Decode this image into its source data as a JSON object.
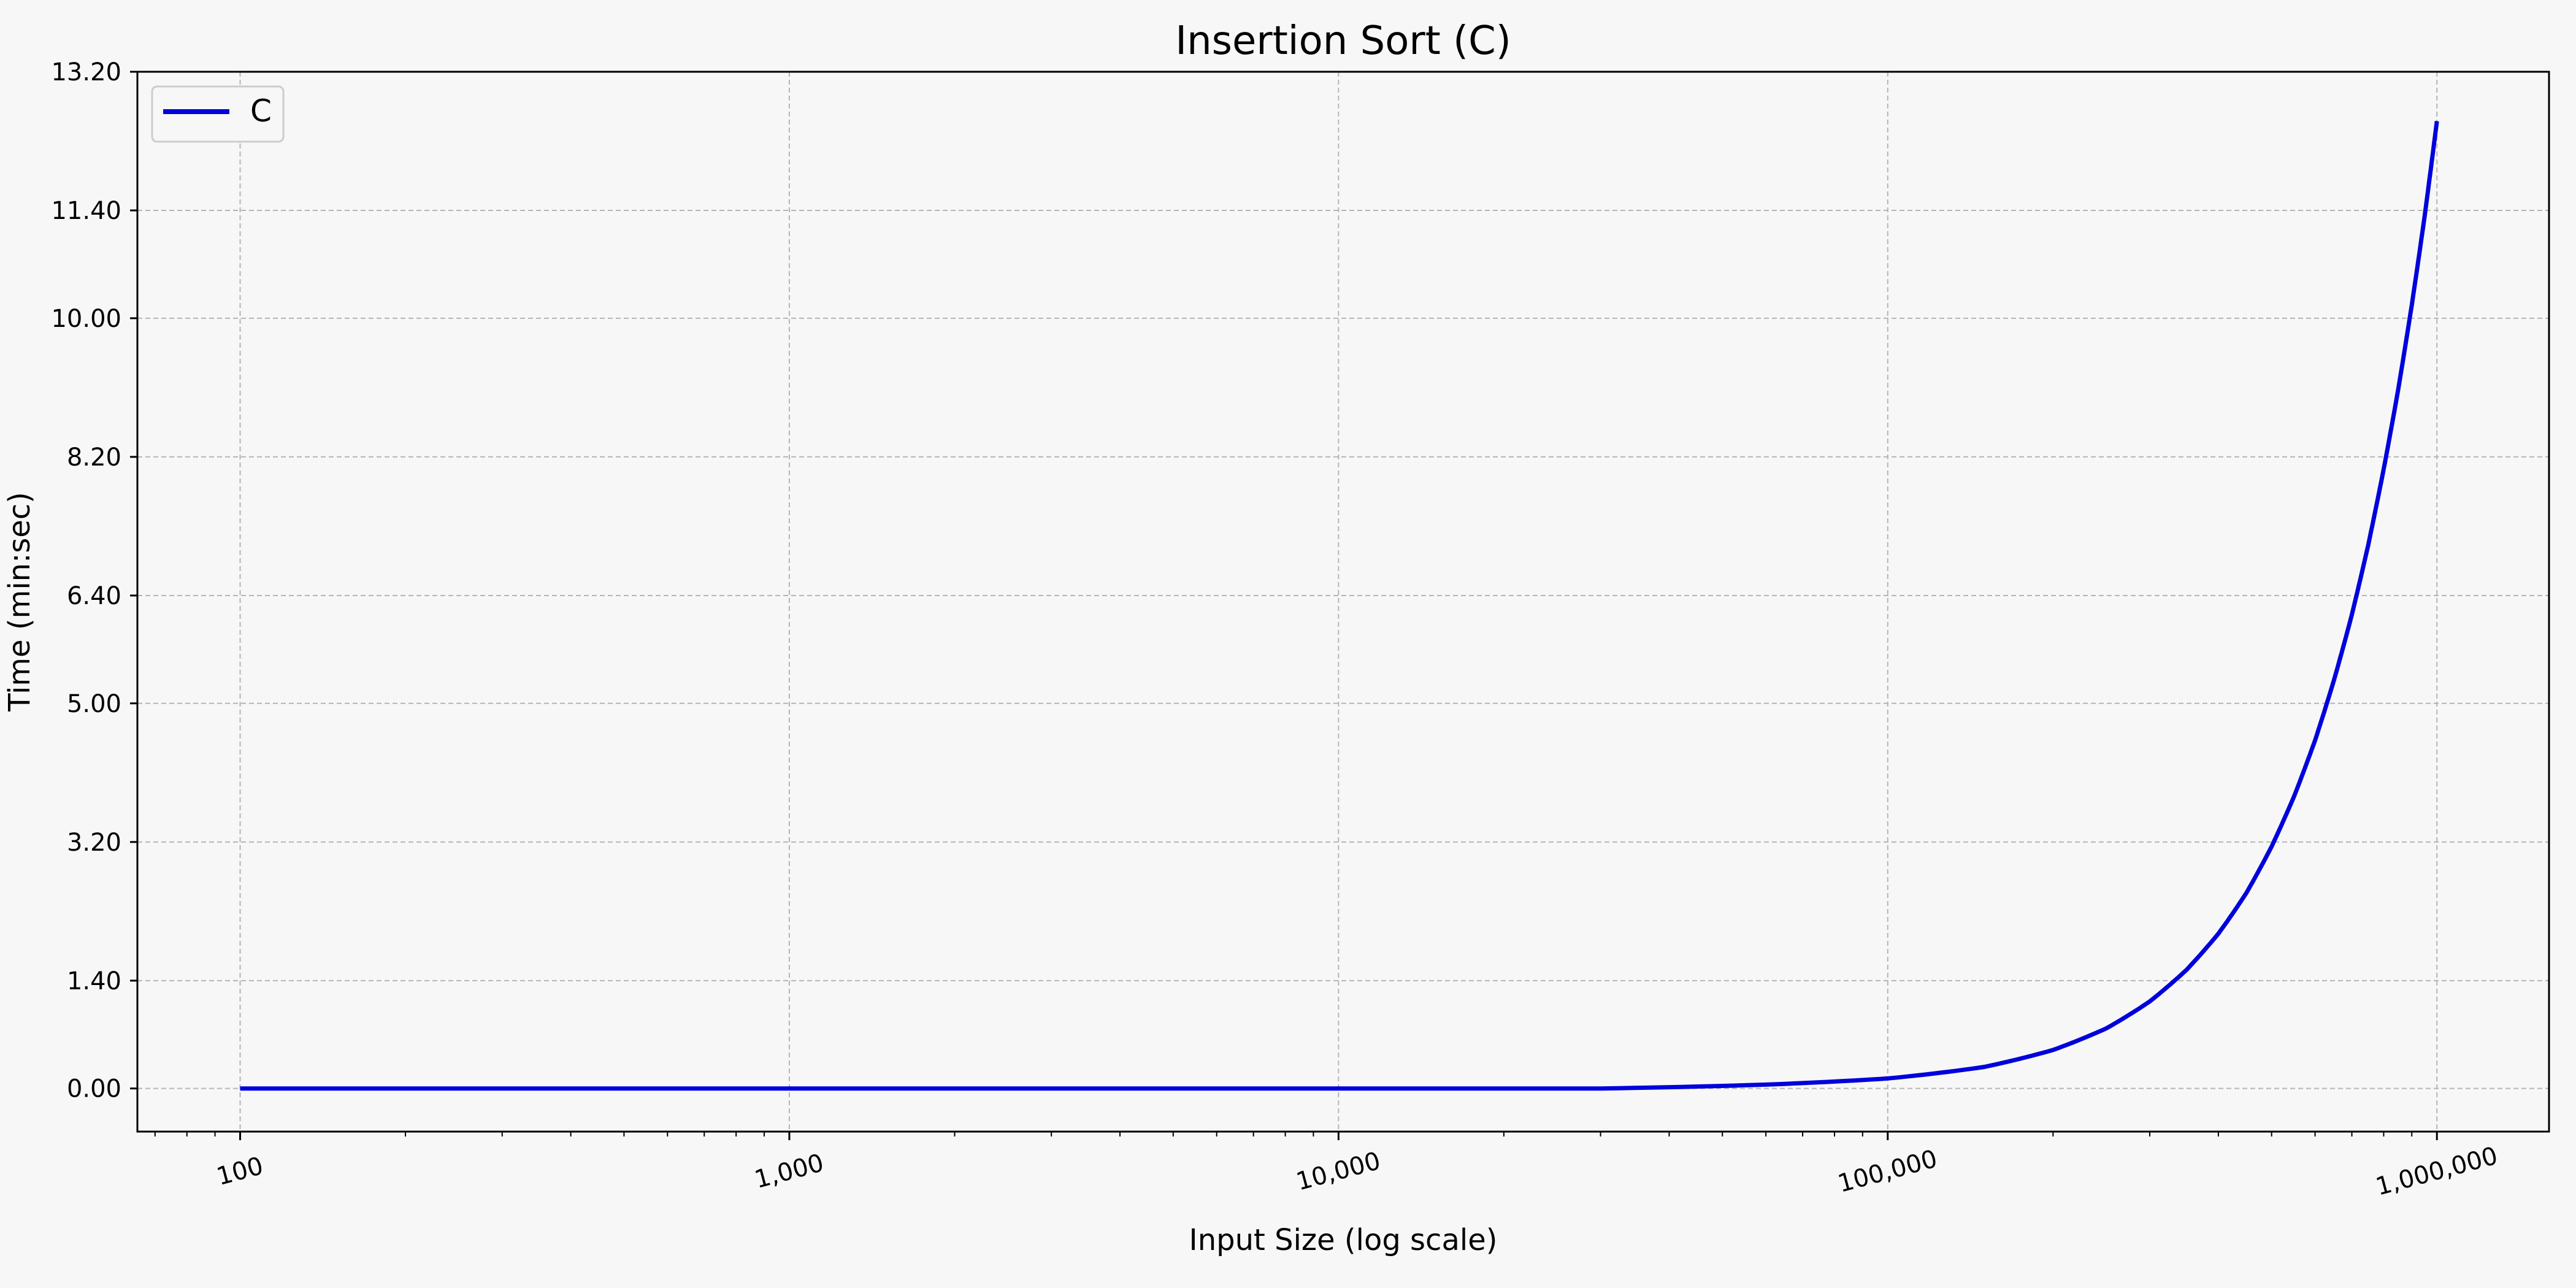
{
  "chart_data": {
    "type": "line",
    "title": "Insertion Sort (C)",
    "xlabel": "Input Size (log scale)",
    "ylabel": "Time (min:sec)",
    "xscale": "log",
    "xlim": [
      65,
      1600000
    ],
    "ylim": [
      -0.56,
      13.2
    ],
    "xticks": [
      {
        "value": 100,
        "label": "100"
      },
      {
        "value": 1000,
        "label": "1,000"
      },
      {
        "value": 10000,
        "label": "10,000"
      },
      {
        "value": 100000,
        "label": "100,000"
      },
      {
        "value": 1000000,
        "label": "1,000,000"
      }
    ],
    "yticks": [
      {
        "value": 0.0,
        "label": "0.00"
      },
      {
        "value": 1.4,
        "label": "1.40"
      },
      {
        "value": 3.2,
        "label": "3.20"
      },
      {
        "value": 5.0,
        "label": "5.00"
      },
      {
        "value": 6.4,
        "label": "6.40"
      },
      {
        "value": 8.2,
        "label": "8.20"
      },
      {
        "value": 10.0,
        "label": "10.00"
      },
      {
        "value": 11.4,
        "label": "11.40"
      },
      {
        "value": 13.2,
        "label": "13.20"
      }
    ],
    "grid": true,
    "legend_position": "top-left",
    "series": [
      {
        "name": "C",
        "color": "#0000dd",
        "x": [
          100,
          1000,
          10000,
          30000,
          60000,
          100000,
          150000,
          200000,
          250000,
          300000,
          350000,
          400000,
          450000,
          500000,
          550000,
          600000,
          650000,
          700000,
          750000,
          800000,
          850000,
          900000,
          950000,
          1000000
        ],
        "y": [
          0.0,
          0.0,
          0.0,
          0.0,
          0.05,
          0.13,
          0.28,
          0.5,
          0.78,
          1.13,
          1.54,
          2.01,
          2.54,
          3.14,
          3.8,
          4.52,
          5.31,
          6.15,
          7.06,
          8.04,
          9.07,
          10.17,
          11.33,
          12.56
        ]
      }
    ]
  }
}
